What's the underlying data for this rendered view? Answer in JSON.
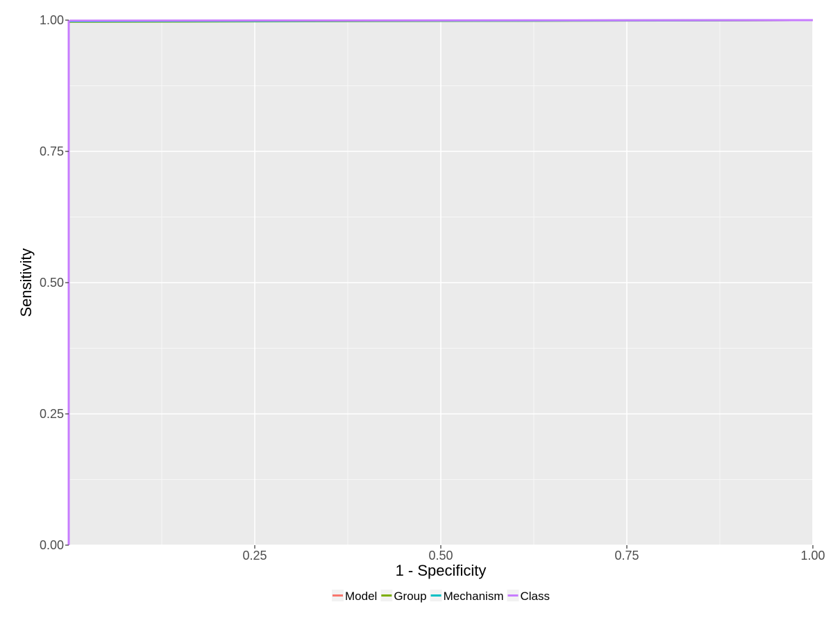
{
  "chart_data": {
    "type": "line",
    "xlabel": "1 - Specificity",
    "ylabel": "Sensitivity",
    "xlim": [
      0,
      1
    ],
    "ylim": [
      0,
      1
    ],
    "x_ticks": [
      "0.25",
      "0.50",
      "0.75",
      "1.00"
    ],
    "x_tick_values": [
      0.25,
      0.5,
      0.75,
      1.0
    ],
    "y_ticks": [
      "0.00",
      "0.25",
      "0.50",
      "0.75",
      "1.00"
    ],
    "y_tick_values": [
      0,
      0.25,
      0.5,
      0.75,
      1.0
    ],
    "grid": true,
    "legend_position": "bottom",
    "series": [
      {
        "name": "Model",
        "color": "#F8766D",
        "x": [
          0,
          0,
          0.002,
          1.0
        ],
        "y": [
          0,
          0.995,
          0.998,
          1.0
        ]
      },
      {
        "name": "Group",
        "color": "#7CAE00",
        "x": [
          0,
          0,
          0.002,
          1.0
        ],
        "y": [
          0,
          0.996,
          0.997,
          1.0
        ]
      },
      {
        "name": "Mechanism",
        "color": "#00BFC4",
        "x": [
          0,
          0,
          0.002,
          1.0
        ],
        "y": [
          0,
          0.997,
          0.998,
          1.0
        ]
      },
      {
        "name": "Class",
        "color": "#C77CFF",
        "x": [
          0,
          0,
          0.002,
          1.0
        ],
        "y": [
          0,
          0.998,
          0.999,
          1.0
        ]
      }
    ]
  }
}
